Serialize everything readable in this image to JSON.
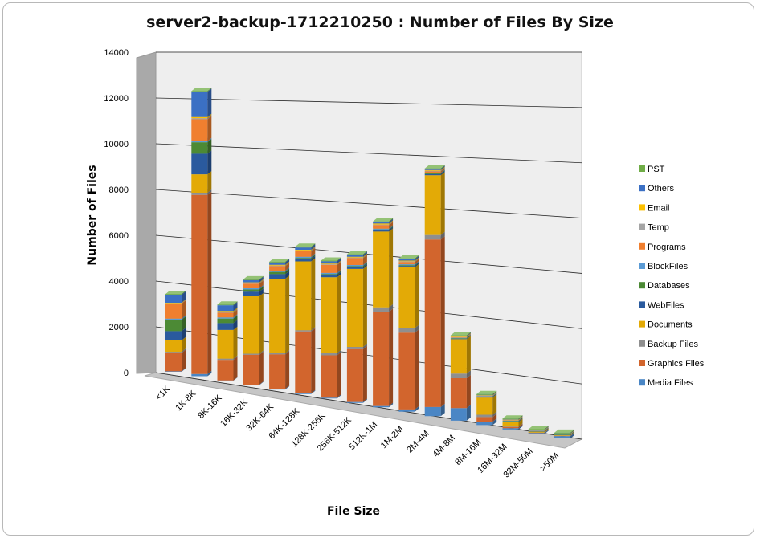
{
  "chart_data": {
    "type": "bar",
    "stacked": true,
    "three_d": true,
    "title": "server2-backup-1712210250 : Number of Files By Size",
    "xlabel": "File Size",
    "ylabel": "Number of Files",
    "ylim": [
      0,
      14000
    ],
    "yticks": [
      0,
      2000,
      4000,
      6000,
      8000,
      10000,
      12000,
      14000
    ],
    "grid": true,
    "legend_position": "right",
    "categories": [
      "<1K",
      "1K-8K",
      "8K-16K",
      "16K-32K",
      "32K-64K",
      "64K-128K",
      "128K-256K",
      "256K-512K",
      "512K-1M",
      "1M-2M",
      "2M-4M",
      "4M-8M",
      "8M-16M",
      "16M-32M",
      "32M-50M",
      ">50M"
    ],
    "series": [
      {
        "name": "Media Files",
        "color": "#4a86c5",
        "values": [
          20,
          100,
          10,
          20,
          30,
          30,
          30,
          40,
          60,
          100,
          400,
          550,
          150,
          60,
          40,
          100
        ]
      },
      {
        "name": "Graphics Files",
        "color": "#d2652d",
        "values": [
          800,
          7800,
          900,
          1300,
          1500,
          2700,
          1850,
          2300,
          4100,
          3350,
          7300,
          1300,
          200,
          50,
          10,
          10
        ]
      },
      {
        "name": "Backup Files",
        "color": "#8f8f8f",
        "values": [
          50,
          100,
          50,
          50,
          50,
          50,
          100,
          100,
          200,
          200,
          200,
          200,
          100,
          20,
          10,
          10
        ]
      },
      {
        "name": "Documents",
        "color": "#e3aa06",
        "values": [
          500,
          800,
          1250,
          2500,
          3250,
          3000,
          3300,
          3400,
          3300,
          2650,
          2600,
          1500,
          750,
          200,
          40,
          20
        ]
      },
      {
        "name": "WebFiles",
        "color": "#2a5a9e",
        "values": [
          400,
          900,
          300,
          200,
          200,
          100,
          100,
          80,
          60,
          60,
          50,
          20,
          20,
          20,
          10,
          10
        ]
      },
      {
        "name": "Databases",
        "color": "#4c8a35",
        "values": [
          500,
          500,
          200,
          100,
          100,
          50,
          40,
          40,
          30,
          30,
          30,
          20,
          20,
          20,
          20,
          20
        ]
      },
      {
        "name": "BlockFiles",
        "color": "#5b9bd5",
        "values": [
          50,
          50,
          50,
          50,
          50,
          50,
          50,
          50,
          40,
          40,
          30,
          20,
          20,
          20,
          10,
          10
        ]
      },
      {
        "name": "Programs",
        "color": "#f07f2f",
        "values": [
          650,
          950,
          200,
          200,
          200,
          250,
          350,
          300,
          150,
          100,
          60,
          20,
          10,
          10,
          10,
          10
        ]
      },
      {
        "name": "Temp",
        "color": "#a5a5a5",
        "values": [
          20,
          50,
          30,
          30,
          30,
          30,
          30,
          30,
          30,
          30,
          30,
          20,
          10,
          10,
          10,
          10
        ]
      },
      {
        "name": "Email",
        "color": "#fdc000",
        "values": [
          20,
          50,
          50,
          30,
          30,
          30,
          30,
          30,
          40,
          30,
          30,
          20,
          20,
          20,
          10,
          10
        ]
      },
      {
        "name": "Others",
        "color": "#3b70c4",
        "values": [
          350,
          1100,
          250,
          100,
          100,
          100,
          100,
          80,
          60,
          60,
          40,
          20,
          20,
          20,
          10,
          10
        ]
      },
      {
        "name": "PST",
        "color": "#70ad47",
        "values": [
          30,
          30,
          30,
          30,
          30,
          30,
          30,
          30,
          30,
          30,
          30,
          30,
          30,
          30,
          30,
          30
        ]
      }
    ]
  }
}
